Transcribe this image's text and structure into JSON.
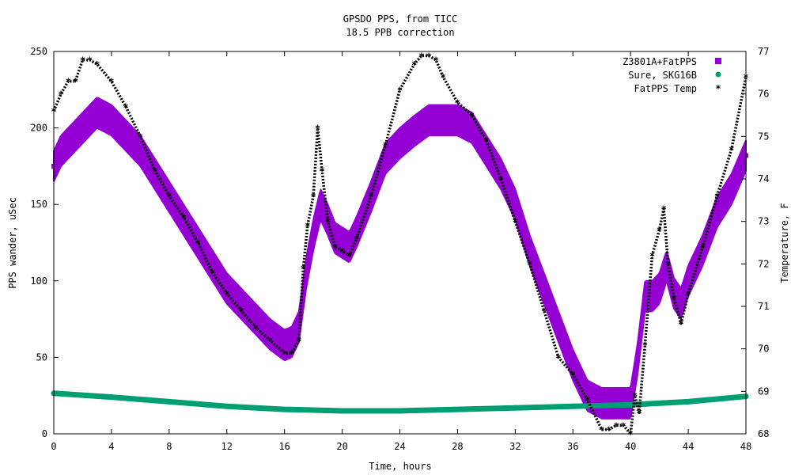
{
  "chart_data": {
    "type": "scatter",
    "title": "GPSDO PPS, from TICC",
    "subtitle": "18.5 PPB correction",
    "xlabel": "Time, hours",
    "ylabel": "PPS wander, uSec",
    "y2label": "Temperature, F",
    "xlim": [
      0,
      48
    ],
    "ylim": [
      0,
      250
    ],
    "y2lim": [
      68,
      77
    ],
    "xticks": [
      "0",
      "4",
      "8",
      "12",
      "16",
      "20",
      "24",
      "28",
      "32",
      "36",
      "40",
      "44",
      "48"
    ],
    "yticks": [
      "0",
      "50",
      "100",
      "150",
      "200",
      "250"
    ],
    "y2ticks": [
      "68",
      "69",
      "70",
      "71",
      "72",
      "73",
      "74",
      "75",
      "76",
      "77"
    ],
    "grid": false,
    "legend_position": "top-right",
    "series": [
      {
        "name": "Z3801A+FatPPS",
        "axis": "y",
        "color": "#9400d3",
        "marker": "square",
        "band_width": 20,
        "x": [
          0,
          0.5,
          1,
          2,
          3,
          4,
          5,
          6,
          7,
          8,
          9,
          10,
          11,
          12,
          13,
          14,
          15,
          16,
          16.5,
          17,
          17.5,
          18,
          18.5,
          19,
          19.5,
          20,
          20.5,
          21,
          22,
          23,
          24,
          25,
          26,
          27,
          28,
          29,
          30,
          31,
          32,
          33,
          34,
          35,
          36,
          37,
          38,
          39,
          40,
          40.5,
          41,
          41.5,
          42,
          42.5,
          43,
          43.5,
          44,
          45,
          46,
          47,
          48
        ],
        "values": [
          175,
          185,
          190,
          200,
          210,
          205,
          195,
          185,
          170,
          155,
          140,
          125,
          110,
          95,
          85,
          75,
          65,
          58,
          60,
          70,
          105,
          130,
          150,
          140,
          128,
          125,
          122,
          132,
          155,
          180,
          190,
          198,
          205,
          205,
          205,
          200,
          185,
          170,
          150,
          120,
          95,
          70,
          45,
          25,
          20,
          20,
          20,
          50,
          90,
          90,
          95,
          110,
          92,
          85,
          100,
          120,
          145,
          160,
          182
        ]
      },
      {
        "name": "Sure, SKG16B",
        "axis": "y",
        "color": "#009e73",
        "marker": "circle",
        "x": [
          0,
          4,
          8,
          12,
          16,
          20,
          24,
          28,
          32,
          36,
          40,
          44,
          48
        ],
        "values": [
          26.5,
          24,
          21,
          18,
          16,
          15,
          15,
          16,
          17,
          18,
          19,
          21,
          24.5
        ]
      },
      {
        "name": "FatPPS Temp",
        "axis": "y2",
        "color": "#000000",
        "marker": "star",
        "x": [
          0,
          0.5,
          1,
          1.5,
          2,
          2.5,
          3,
          4,
          5,
          6,
          7,
          8,
          9,
          10,
          11,
          12,
          13,
          14,
          15,
          16,
          16.5,
          17,
          17.3,
          17.6,
          18,
          18.3,
          18.6,
          19,
          19.5,
          20,
          20.5,
          21,
          22,
          23,
          24,
          25,
          25.5,
          26,
          26.5,
          27,
          28,
          29,
          30,
          31,
          32,
          33,
          34,
          35,
          36,
          37,
          38,
          38.5,
          39,
          39.5,
          40,
          40.3,
          40.6,
          41,
          41.5,
          42,
          42.3,
          42.6,
          43,
          43.5,
          44,
          45,
          46,
          47,
          48
        ],
        "values": [
          75.6,
          76.0,
          76.3,
          76.3,
          76.8,
          76.8,
          76.7,
          76.3,
          75.7,
          75.0,
          74.2,
          73.6,
          73.1,
          72.5,
          71.8,
          71.3,
          70.9,
          70.5,
          70.2,
          69.9,
          69.9,
          70.2,
          71.9,
          72.9,
          73.6,
          75.2,
          74.2,
          73.0,
          72.4,
          72.3,
          72.2,
          72.6,
          73.6,
          74.8,
          76.1,
          76.7,
          76.9,
          76.9,
          76.8,
          76.4,
          75.8,
          75.5,
          74.9,
          74.0,
          73.0,
          72.0,
          70.9,
          69.8,
          69.4,
          68.8,
          68.1,
          68.1,
          68.2,
          68.2,
          68.0,
          68.9,
          68.5,
          70.1,
          72.2,
          72.8,
          73.3,
          72.0,
          71.2,
          70.6,
          71.3,
          72.4,
          73.6,
          74.7,
          76.4
        ]
      }
    ]
  }
}
